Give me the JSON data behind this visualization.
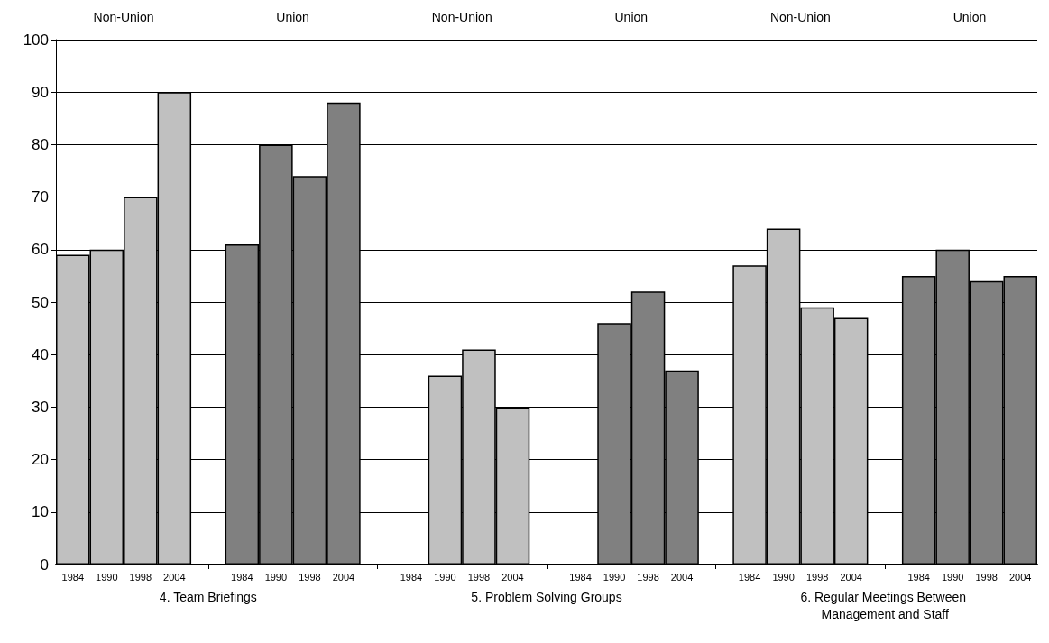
{
  "chart_data": {
    "type": "bar",
    "categories": [
      "1984",
      "1990",
      "1998",
      "2004",
      null,
      "1984",
      "1990",
      "1998",
      "2004",
      null,
      "1984",
      "1990",
      "1998",
      "2004",
      null,
      "1984",
      "1990",
      "1998",
      "2004",
      null,
      "1984",
      "1990",
      "1998",
      "2004",
      null,
      "1984",
      "1990",
      "1998",
      "2004"
    ],
    "values": [
      59,
      60,
      70,
      90,
      null,
      61,
      80,
      74,
      88,
      null,
      null,
      36,
      41,
      30,
      null,
      null,
      46,
      52,
      37,
      null,
      57,
      64,
      49,
      47,
      null,
      55,
      60,
      54,
      55
    ],
    "colors": [
      "#c0c0c0",
      "#c0c0c0",
      "#c0c0c0",
      "#c0c0c0",
      null,
      "#808080",
      "#808080",
      "#808080",
      "#808080",
      null,
      "#c0c0c0",
      "#c0c0c0",
      "#c0c0c0",
      "#c0c0c0",
      null,
      "#808080",
      "#808080",
      "#808080",
      "#808080",
      null,
      "#c0c0c0",
      "#c0c0c0",
      "#c0c0c0",
      "#c0c0c0",
      null,
      "#808080",
      "#808080",
      "#808080",
      "#808080"
    ],
    "ylim": [
      0,
      100
    ],
    "yticks": [
      0,
      10,
      20,
      30,
      40,
      50,
      60,
      70,
      80,
      90,
      100
    ],
    "grid": "y",
    "annotations": [
      "Non-Union",
      "Union",
      "Non-Union",
      "Union",
      "Non-Union",
      "Union",
      "4. Team Briefings",
      "5. Problem Solving Groups",
      "6. Regular Meetings Between Management and Staff"
    ]
  }
}
